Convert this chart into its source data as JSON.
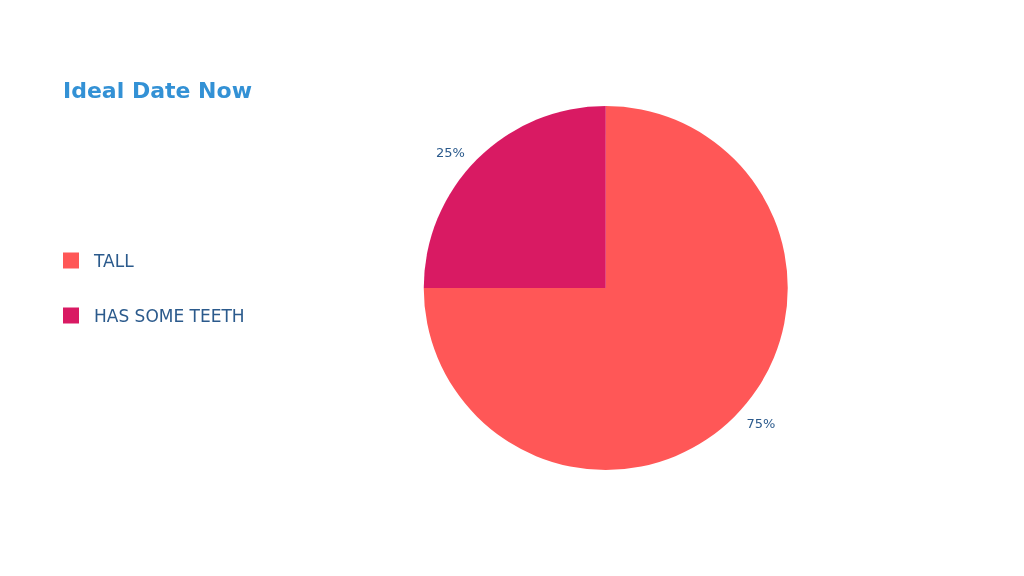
{
  "chart_data": {
    "type": "pie",
    "title": "Ideal Date Now",
    "categories": [
      "TALL",
      "HAS SOME TEETH"
    ],
    "values": [
      75,
      25
    ],
    "colors": [
      "#ff5757",
      "#d91a63"
    ],
    "value_labels": [
      "75%",
      "25%"
    ],
    "legend": "left"
  }
}
